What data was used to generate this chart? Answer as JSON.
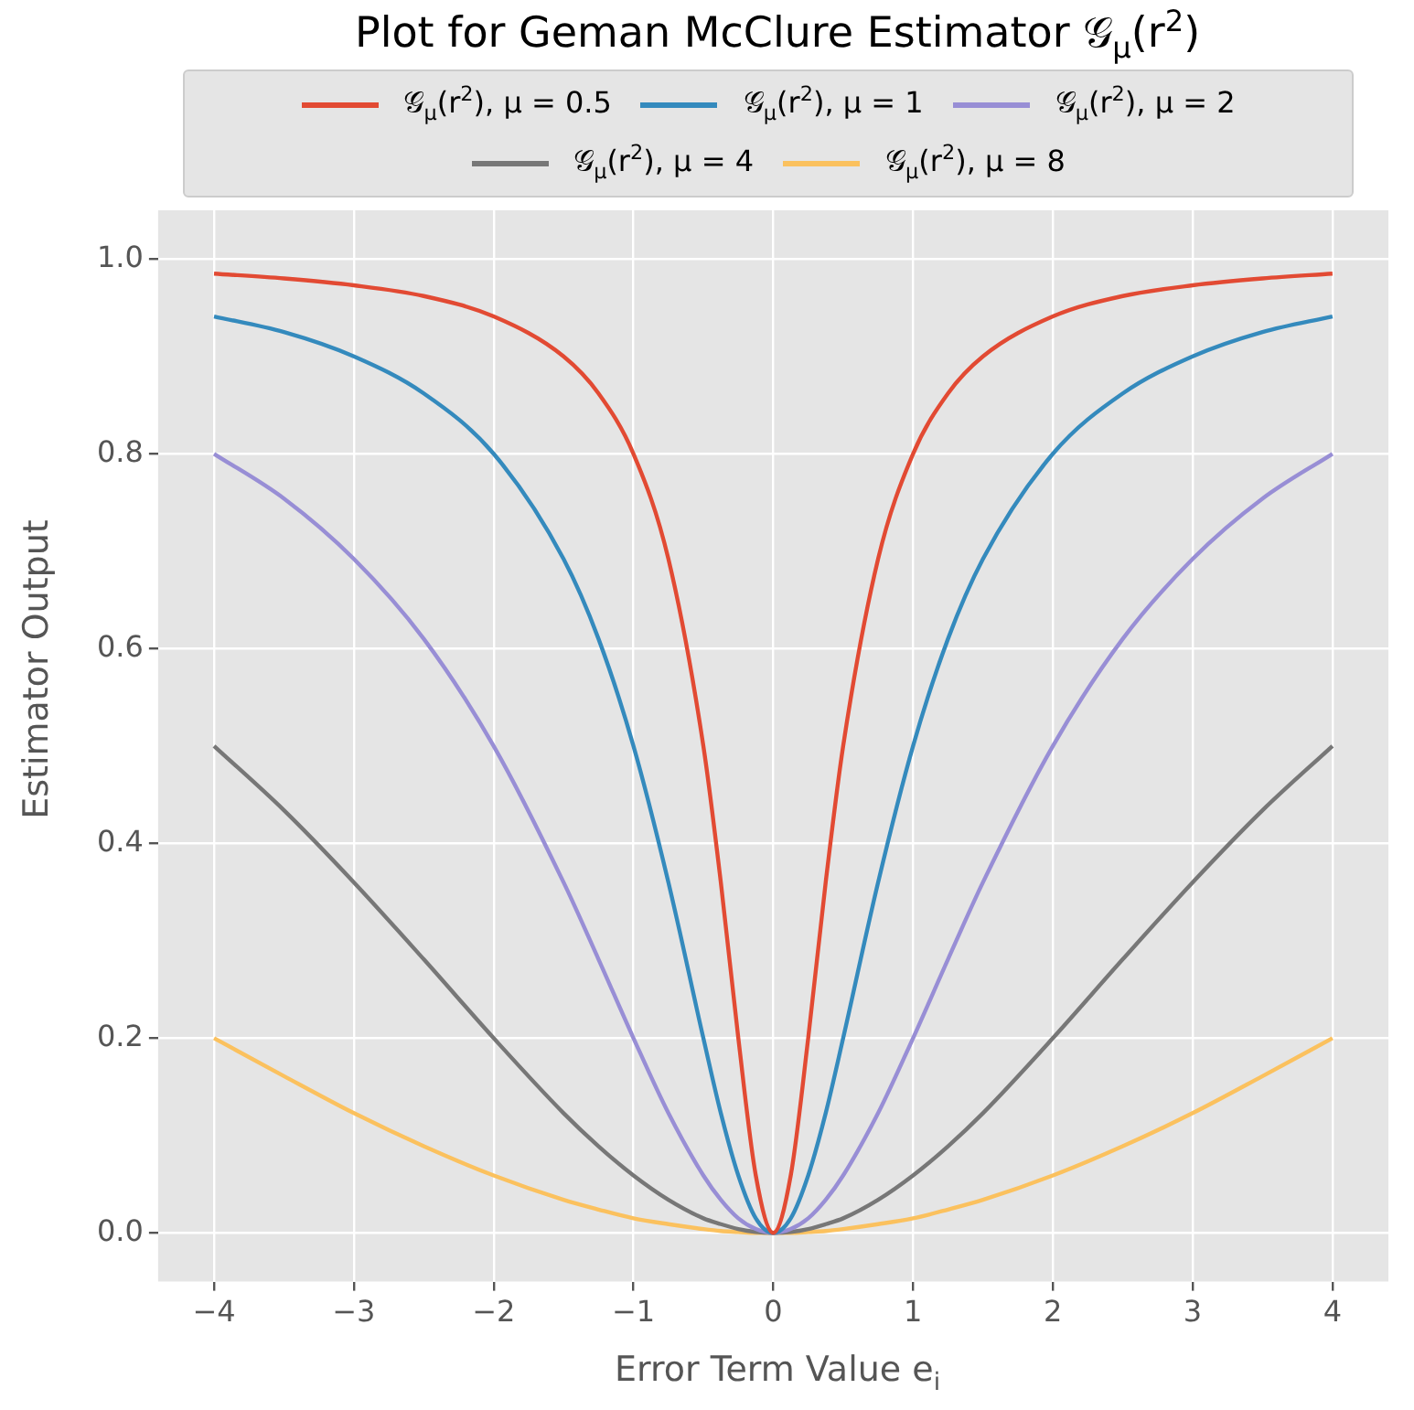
{
  "chart_data": {
    "type": "line",
    "title": "Plot for Geman McClure Estimator 𝒢$_{μ}$(r$^{2}$)",
    "xlabel": "Error Term Value e$_{i}$",
    "ylabel": "Estimator Output",
    "x": [
      -4,
      -3.5,
      -3,
      -2.5,
      -2,
      -1.5,
      -1.25,
      -1,
      -0.75,
      -0.5,
      -0.375,
      -0.25,
      -0.125,
      0,
      0.125,
      0.25,
      0.375,
      0.5,
      0.75,
      1,
      1.25,
      1.5,
      2,
      2.5,
      3,
      3.5,
      4
    ],
    "series": [
      {
        "name": "𝒢$_{μ}$(r$^{2}$), μ = 0.5",
        "color": "#e24a33",
        "values": [
          0.985,
          0.98,
          0.973,
          0.962,
          0.941,
          0.9,
          0.862,
          0.8,
          0.692,
          0.5,
          0.36,
          0.2,
          0.059,
          0,
          0.059,
          0.2,
          0.36,
          0.5,
          0.692,
          0.8,
          0.862,
          0.9,
          0.941,
          0.962,
          0.973,
          0.98,
          0.985
        ]
      },
      {
        "name": "𝒢$_{μ}$(r$^{2}$), μ = 1",
        "color": "#348abd",
        "values": [
          0.941,
          0.925,
          0.9,
          0.862,
          0.8,
          0.692,
          0.61,
          0.5,
          0.36,
          0.2,
          0.123,
          0.059,
          0.015,
          0,
          0.015,
          0.059,
          0.123,
          0.2,
          0.36,
          0.5,
          0.61,
          0.692,
          0.8,
          0.862,
          0.9,
          0.925,
          0.941
        ]
      },
      {
        "name": "𝒢$_{μ}$(r$^{2}$), μ = 2",
        "color": "#988ed5",
        "values": [
          0.8,
          0.754,
          0.692,
          0.61,
          0.5,
          0.36,
          0.281,
          0.2,
          0.123,
          0.059,
          0.034,
          0.015,
          0.004,
          0,
          0.004,
          0.015,
          0.034,
          0.059,
          0.123,
          0.2,
          0.281,
          0.36,
          0.5,
          0.61,
          0.692,
          0.754,
          0.8
        ]
      },
      {
        "name": "𝒢$_{μ}$(r$^{2}$), μ = 4",
        "color": "#777777",
        "values": [
          0.5,
          0.434,
          0.36,
          0.281,
          0.2,
          0.123,
          0.089,
          0.059,
          0.034,
          0.015,
          0.009,
          0.004,
          0.001,
          0,
          0.001,
          0.004,
          0.009,
          0.015,
          0.034,
          0.059,
          0.089,
          0.123,
          0.2,
          0.281,
          0.36,
          0.434,
          0.5
        ]
      },
      {
        "name": "𝒢$_{μ}$(r$^{2}$), μ = 8",
        "color": "#fbc15e",
        "values": [
          0.2,
          0.161,
          0.123,
          0.089,
          0.059,
          0.034,
          0.024,
          0.015,
          0.009,
          0.004,
          0.002,
          0.001,
          0,
          0,
          0,
          0.001,
          0.002,
          0.004,
          0.009,
          0.015,
          0.024,
          0.034,
          0.059,
          0.089,
          0.123,
          0.161,
          0.2
        ]
      }
    ],
    "xlim": [
      -4.4,
      4.4
    ],
    "xticks": [
      {
        "value": -4,
        "label": "−4"
      },
      {
        "value": -3,
        "label": "−3"
      },
      {
        "value": -2,
        "label": "−2"
      },
      {
        "value": -1,
        "label": "−1"
      },
      0,
      1,
      2,
      3,
      4
    ],
    "ylim": [
      -0.05,
      1.05
    ],
    "yticks": [
      {
        "value": 0,
        "label": "0.0"
      },
      {
        "value": 0.2,
        "label": "0.2"
      },
      {
        "value": 0.4,
        "label": "0.4"
      },
      {
        "value": 0.6,
        "label": "0.6"
      },
      {
        "value": 0.8,
        "label": "0.8"
      },
      {
        "value": 1,
        "label": "1.0"
      }
    ],
    "grid": true,
    "legend": "top",
    "marker": "none",
    "line_style": "solid"
  }
}
